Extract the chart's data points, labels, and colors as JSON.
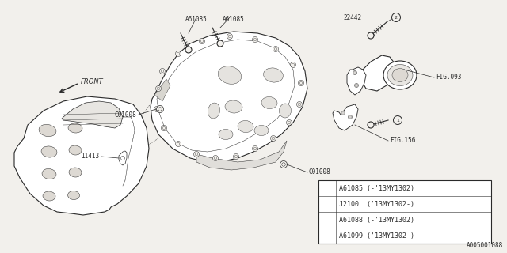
{
  "background_color": "#f2f0ec",
  "line_color": "#2a2a2a",
  "legend": {
    "circle1_label1": "A61085 (-'13MY1302)",
    "circle1_label2": "J2100  ('13MY1302-)",
    "circle2_label1": "A61088 (-'13MY1302)",
    "circle2_label2": "A61099 ('13MY1302-)"
  },
  "diagram_id": "A005001088",
  "labels": {
    "bolt_tl1": "A61085",
    "bolt_tl2": "A61085",
    "bolt_tr": "22442",
    "plug1": "11413",
    "plug2": "C01008",
    "plug3": "C01008",
    "fig1": "FIG.093",
    "fig2": "FIG.156",
    "front": "FRONT"
  }
}
